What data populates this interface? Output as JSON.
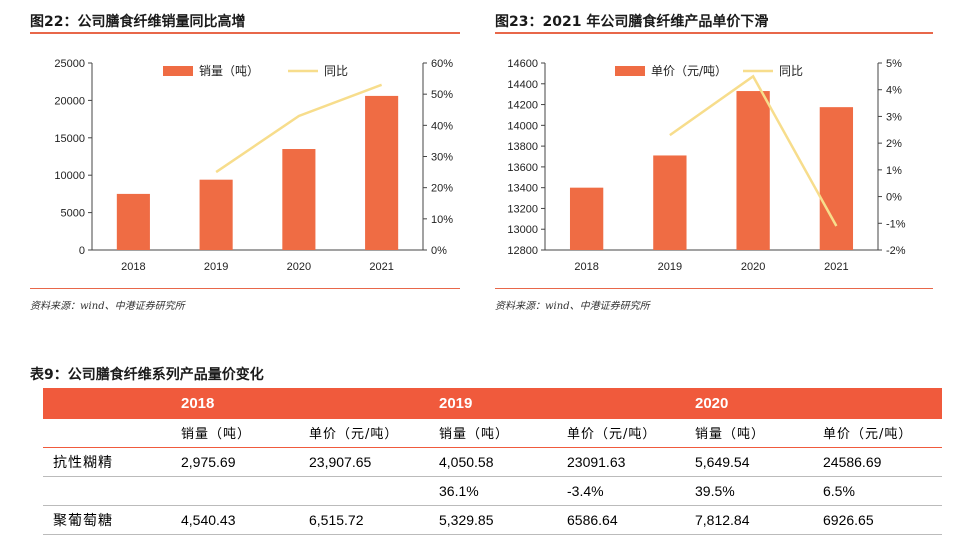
{
  "fig22": {
    "title": "图22：公司膳食纤维销量同比高增",
    "source": "资料来源：wind、中港证券研究所"
  },
  "fig23": {
    "title": "图23：2021 年公司膳食纤维产品单价下滑",
    "source": "资料来源：wind、中港证券研究所"
  },
  "table": {
    "title": "表9：公司膳食纤维系列产品量价变化",
    "years": [
      "2018",
      "2019",
      "2020"
    ],
    "sub_headers": [
      "销量（吨）",
      "单价（元/吨）",
      "销量（吨）",
      "单价（元/吨）",
      "销量（吨）",
      "单价（元/吨）"
    ],
    "rows": [
      [
        "抗性糊精",
        "2,975.69",
        "23,907.65",
        "4,050.58",
        "23091.63",
        "5,649.54",
        "24586.69"
      ],
      [
        "",
        "",
        "",
        "36.1%",
        "-3.4%",
        "39.5%",
        "6.5%"
      ],
      [
        "聚葡萄糖",
        "4,540.43",
        "6,515.72",
        "5,329.85",
        "6586.64",
        "7,812.84",
        "6926.65"
      ]
    ]
  },
  "chart_data": [
    {
      "type": "bar",
      "categories": [
        "2018",
        "2019",
        "2020",
        "2021"
      ],
      "series": [
        {
          "name": "销量（吨）",
          "type": "bar",
          "axis": "left",
          "values": [
            7500,
            9400,
            13500,
            20600
          ]
        },
        {
          "name": "同比",
          "type": "line",
          "axis": "right",
          "values": [
            null,
            25,
            43,
            53
          ]
        }
      ],
      "ylim": [
        0,
        25000
      ],
      "yticks": [
        "0",
        "5000",
        "10000",
        "15000",
        "20000",
        "25000"
      ],
      "y2lim": [
        0,
        60
      ],
      "y2ticks": [
        "0%",
        "10%",
        "20%",
        "30%",
        "40%",
        "50%",
        "60%"
      ],
      "legend": "top",
      "colors": {
        "bar": "#ef6c44",
        "line": "#f7dd8c"
      }
    },
    {
      "type": "bar",
      "categories": [
        "2018",
        "2019",
        "2020",
        "2021"
      ],
      "series": [
        {
          "name": "单价（元/吨）",
          "type": "bar",
          "axis": "left",
          "values": [
            13400,
            13710,
            14330,
            14175
          ]
        },
        {
          "name": "同比",
          "type": "line",
          "axis": "right",
          "values": [
            null,
            2.3,
            4.5,
            -1.1
          ]
        }
      ],
      "ylim": [
        12800,
        14600
      ],
      "yticks": [
        "12800",
        "13000",
        "13200",
        "13400",
        "13600",
        "13800",
        "14000",
        "14200",
        "14400",
        "14600"
      ],
      "y2lim": [
        -2,
        5
      ],
      "y2ticks": [
        "-2%",
        "-1%",
        "0%",
        "1%",
        "2%",
        "3%",
        "4%",
        "5%"
      ],
      "legend": "top",
      "colors": {
        "bar": "#ef6c44",
        "line": "#f7dd8c"
      }
    }
  ]
}
